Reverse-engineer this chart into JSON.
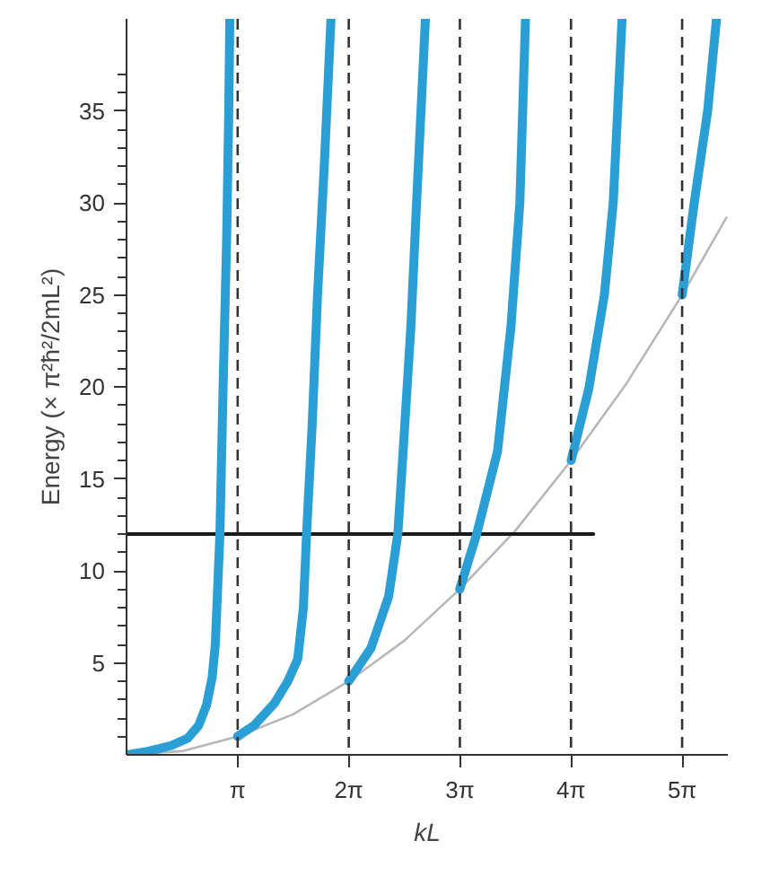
{
  "chart_data": {
    "type": "line",
    "xlabel": "kL",
    "ylabel": "Energy (× π²ħ²/2mL²)",
    "xlim": [
      0,
      17.0
    ],
    "ylim": [
      0,
      40
    ],
    "xticks": [
      {
        "value": 3.1416,
        "label": "π"
      },
      {
        "value": 6.2832,
        "label": "2π"
      },
      {
        "value": 9.4248,
        "label": "3π"
      },
      {
        "value": 12.5664,
        "label": "4π"
      },
      {
        "value": 15.708,
        "label": "5π"
      }
    ],
    "yticks": [
      {
        "value": 1,
        "label": null
      },
      {
        "value": 2,
        "label": null
      },
      {
        "value": 3,
        "label": null
      },
      {
        "value": 4,
        "label": null
      },
      5,
      {
        "value": 6,
        "label": null
      },
      {
        "value": 7,
        "label": null
      },
      {
        "value": 8,
        "label": null
      },
      {
        "value": 9,
        "label": null
      },
      10,
      {
        "value": 11,
        "label": null
      },
      {
        "value": 12,
        "label": null
      },
      {
        "value": 13,
        "label": null
      },
      {
        "value": 14,
        "label": null
      },
      15,
      {
        "value": 16,
        "label": null
      },
      {
        "value": 17,
        "label": null
      },
      {
        "value": 18,
        "label": null
      },
      {
        "value": 19,
        "label": null
      },
      20,
      {
        "value": 21,
        "label": null
      },
      {
        "value": 22,
        "label": null
      },
      {
        "value": 23,
        "label": null
      },
      {
        "value": 24,
        "label": null
      },
      25,
      {
        "value": 26,
        "label": null
      },
      {
        "value": 27,
        "label": null
      },
      {
        "value": 28,
        "label": null
      },
      {
        "value": 29,
        "label": null
      },
      30,
      {
        "value": 31,
        "label": null
      },
      {
        "value": 32,
        "label": null
      },
      {
        "value": 33,
        "label": null
      },
      {
        "value": 34,
        "label": null
      },
      35,
      {
        "value": 36,
        "label": null
      },
      {
        "value": 37,
        "label": null
      }
    ],
    "grid": false,
    "marker": "none",
    "line_style": "solid",
    "series": [
      {
        "color": "#b8b8b8",
        "x": [
          0,
          1.57,
          3.14,
          4.71,
          6.28,
          7.85,
          9.42,
          11.0,
          12.57,
          14.14,
          15.71,
          16.96
        ],
        "values": [
          0,
          0.2,
          1,
          2.2,
          4,
          6.2,
          9,
          12.2,
          16,
          20.2,
          25,
          29.2
        ]
      },
      {
        "color": "#1a1a1a",
        "x": [
          0,
          13.2
        ],
        "values": [
          12,
          12
        ]
      },
      {
        "color": "#2a9fd6",
        "x": [
          0,
          0.63,
          1.26,
          1.73,
          2.04,
          2.26,
          2.42,
          2.51,
          2.64,
          2.73,
          2.83,
          2.89,
          2.92
        ],
        "values": [
          0,
          0.2,
          0.5,
          0.9,
          1.6,
          2.7,
          4.2,
          6,
          12,
          20,
          28,
          35,
          40
        ]
      },
      {
        "color": "#2a9fd6",
        "x": [
          3.14,
          3.61,
          4.18,
          4.56,
          4.84,
          5.0,
          5.09,
          5.25,
          5.4,
          5.59,
          5.78
        ],
        "values": [
          1,
          1.6,
          2.8,
          4,
          5.2,
          8,
          12,
          18,
          25,
          32,
          40
        ]
      },
      {
        "color": "#2a9fd6",
        "x": [
          6.28,
          6.91,
          7.41,
          7.67,
          7.82,
          8.04,
          8.2,
          8.45
        ],
        "values": [
          4,
          5.8,
          8.6,
          12,
          16.5,
          23.3,
          30,
          40
        ]
      },
      {
        "color": "#2a9fd6",
        "x": [
          9.42,
          9.9,
          10.49,
          10.87,
          11.12,
          11.28
        ],
        "values": [
          9,
          12,
          16.5,
          23.3,
          30,
          40
        ]
      },
      {
        "color": "#2a9fd6",
        "x": [
          12.57,
          13.07,
          13.51,
          13.76,
          14.01
        ],
        "values": [
          16,
          19.9,
          25,
          30,
          40
        ]
      },
      {
        "color": "#2a9fd6",
        "x": [
          15.71,
          16.05,
          16.43,
          16.68
        ],
        "values": [
          25,
          30,
          35,
          40
        ]
      }
    ],
    "ref_lines": [
      {
        "axis": "x",
        "value": 3.1416,
        "line_style": "dashed",
        "color": "#333333"
      },
      {
        "axis": "x",
        "value": 6.2832,
        "line_style": "dashed",
        "color": "#333333"
      },
      {
        "axis": "x",
        "value": 9.4248,
        "line_style": "dashed",
        "color": "#333333"
      },
      {
        "axis": "x",
        "value": 12.5664,
        "line_style": "dashed",
        "color": "#333333"
      },
      {
        "axis": "x",
        "value": 15.708,
        "line_style": "dashed",
        "color": "#333333"
      }
    ]
  }
}
